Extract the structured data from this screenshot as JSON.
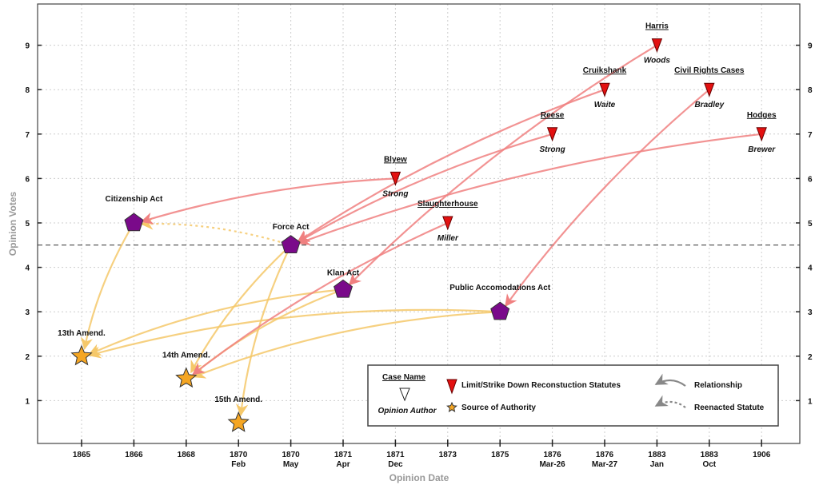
{
  "chart_data": {
    "type": "scatter",
    "xlabel": "Opinion Date",
    "ylabel": "Opinion Votes",
    "ylim": [
      0,
      10
    ],
    "yticks": [
      1,
      2,
      3,
      4,
      5,
      6,
      7,
      8,
      9
    ],
    "grid": true,
    "threshold_line": 4.5,
    "x_categories": [
      [
        "1865",
        ""
      ],
      [
        "1866",
        ""
      ],
      [
        "1868",
        ""
      ],
      [
        "1870",
        "Feb"
      ],
      [
        "1870",
        "May"
      ],
      [
        "1871",
        "Apr"
      ],
      [
        "1871",
        "Dec"
      ],
      [
        "1873",
        ""
      ],
      [
        "1875",
        ""
      ],
      [
        "1876",
        "Mar-26"
      ],
      [
        "1876",
        "Mar-27"
      ],
      [
        "1883",
        "Jan"
      ],
      [
        "1883",
        "Oct"
      ],
      [
        "1906",
        ""
      ]
    ],
    "cases": [
      {
        "id": "harris",
        "name": "Harris",
        "author": "Woods",
        "x": 11,
        "y": 9
      },
      {
        "id": "cruikshank",
        "name": "Cruikshank",
        "author": "Waite",
        "x": 10,
        "y": 8
      },
      {
        "id": "civil",
        "name": "Civil Rights Cases",
        "author": "Bradley",
        "x": 12,
        "y": 8
      },
      {
        "id": "reese",
        "name": "Reese",
        "author": "Strong",
        "x": 9,
        "y": 7
      },
      {
        "id": "hodges",
        "name": "Hodges",
        "author": "Brewer",
        "x": 13,
        "y": 7
      },
      {
        "id": "blyew",
        "name": "Blyew",
        "author": "Strong",
        "x": 6,
        "y": 6
      },
      {
        "id": "slaughter",
        "name": "Slaughterhouse",
        "author": "Miller",
        "x": 7,
        "y": 5
      }
    ],
    "statutes": [
      {
        "id": "citizenship",
        "name": "Citizenship Act",
        "x": 1,
        "y": 5
      },
      {
        "id": "force",
        "name": "Force Act",
        "x": 4,
        "y": 4.5
      },
      {
        "id": "klan",
        "name": "Klan Act",
        "x": 5,
        "y": 3.5
      },
      {
        "id": "pubacc",
        "name": "Public Accomodations Act",
        "x": 8,
        "y": 3
      }
    ],
    "amendments": [
      {
        "id": "a13",
        "name": "13th Amend.",
        "x": 0,
        "y": 2
      },
      {
        "id": "a14",
        "name": "14th Amend.",
        "x": 2,
        "y": 1.5
      },
      {
        "id": "a15",
        "name": "15th Amend.",
        "x": 3,
        "y": 0.5
      }
    ],
    "limit_links": [
      [
        "blyew",
        "citizenship"
      ],
      [
        "reese",
        "force"
      ],
      [
        "cruikshank",
        "force"
      ],
      [
        "hodges",
        "force"
      ],
      [
        "harris",
        "klan"
      ],
      [
        "slaughter",
        "a14"
      ],
      [
        "civil",
        "pubacc"
      ]
    ],
    "authority_links": [
      [
        "citizenship",
        "a13"
      ],
      [
        "force",
        "a14"
      ],
      [
        "force",
        "a15"
      ],
      [
        "klan",
        "a13"
      ],
      [
        "klan",
        "a14"
      ],
      [
        "pubacc",
        "a13"
      ],
      [
        "pubacc",
        "a14"
      ]
    ],
    "reenacted_links": [
      [
        "force",
        "citizenship"
      ]
    ],
    "legend": {
      "case_name": "Case Name",
      "opinion_author": "Opinion Author",
      "limit": "Limit/Strike Down Reconstuction Statutes",
      "source": "Source of Authority",
      "relationship": "Relationship",
      "reenacted": "Reenacted Statute"
    },
    "colors": {
      "limit": "#f08080",
      "authority": "#f5c86a",
      "case": "#e31010",
      "statute": "#7a0a8a",
      "amend": "#f5a623"
    }
  }
}
